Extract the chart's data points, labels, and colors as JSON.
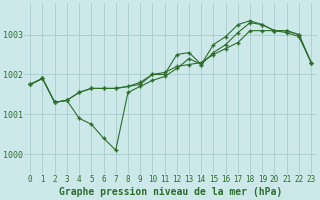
{
  "xlabel": "Graphe pression niveau de la mer (hPa)",
  "background_color": "#cce8e8",
  "grid_color": "#aacccc",
  "line_color": "#2d6e2d",
  "ylim": [
    999.5,
    1003.8
  ],
  "xlim": [
    -0.5,
    23.5
  ],
  "yticks": [
    1000,
    1001,
    1002,
    1003
  ],
  "xtick_labels": [
    "0",
    "1",
    "2",
    "3",
    "4",
    "5",
    "6",
    "7",
    "8",
    "9",
    "10",
    "11",
    "12",
    "13",
    "14",
    "15",
    "16",
    "17",
    "18",
    "19",
    "20",
    "21",
    "22",
    "23"
  ],
  "line1_x": [
    0,
    1,
    2,
    3,
    4,
    5,
    6,
    7,
    8,
    9,
    10,
    11,
    12,
    13,
    14,
    15,
    16,
    17,
    18,
    19,
    20,
    21,
    22,
    23
  ],
  "line1_y": [
    1001.75,
    1001.9,
    1001.3,
    1001.35,
    1000.9,
    1000.75,
    1000.4,
    1000.1,
    1001.55,
    1001.7,
    1001.85,
    1001.95,
    1002.15,
    1002.4,
    1002.25,
    1002.55,
    1002.75,
    1003.05,
    1003.3,
    1003.25,
    1003.1,
    1003.1,
    1003.0,
    1002.3
  ],
  "line2_x": [
    0,
    1,
    2,
    3,
    4,
    5,
    6,
    7,
    9,
    10,
    11,
    12,
    13,
    14,
    15,
    16,
    17,
    18,
    19,
    20,
    21,
    22,
    23
  ],
  "line2_y": [
    1001.75,
    1001.9,
    1001.3,
    1001.35,
    1001.55,
    1001.65,
    1001.65,
    1001.65,
    1001.75,
    1002.0,
    1002.0,
    1002.5,
    1002.55,
    1002.25,
    1002.75,
    1002.95,
    1003.25,
    1003.35,
    1003.25,
    1003.1,
    1003.1,
    1003.0,
    1002.3
  ],
  "line3_x": [
    0,
    1,
    2,
    3,
    4,
    5,
    6,
    7,
    8,
    9,
    10,
    11,
    12,
    13,
    14,
    15,
    16,
    17,
    18,
    19,
    20,
    21,
    22,
    23
  ],
  "line3_y": [
    1001.75,
    1001.9,
    1001.3,
    1001.35,
    1001.55,
    1001.65,
    1001.65,
    1001.65,
    1001.7,
    1001.8,
    1002.0,
    1002.05,
    1002.2,
    1002.25,
    1002.3,
    1002.5,
    1002.65,
    1002.8,
    1003.1,
    1003.1,
    1003.1,
    1003.05,
    1002.95,
    1002.3
  ],
  "marker_style": "+",
  "marker_size": 3,
  "line_width": 0.8,
  "font_size_xlabel": 7,
  "font_size_ytick": 6,
  "font_size_xtick": 5.5
}
